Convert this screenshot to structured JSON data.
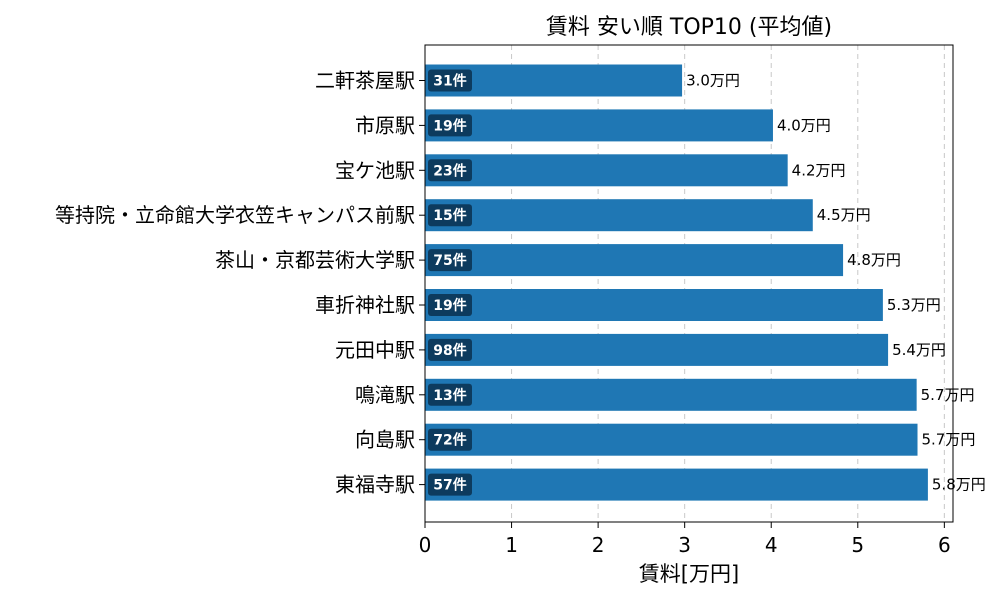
{
  "chart_data": {
    "type": "bar",
    "orientation": "horizontal",
    "title": "賃料 安い順 TOP10 (平均値)",
    "xlabel": "賃料[万円]",
    "ylabel": "",
    "xlim": [
      0,
      6.1
    ],
    "xticks": [
      "0",
      "1",
      "2",
      "3",
      "4",
      "5",
      "6"
    ],
    "grid": "x-dashed",
    "bar_color": "#1f77b4",
    "badge_color": "#0d3b5e",
    "categories": [
      "二軒茶屋駅",
      "市原駅",
      "宝ケ池駅",
      "等持院・立命館大学衣笠キャンパス前駅",
      "茶山・京都芸術大学駅",
      "車折神社駅",
      "元田中駅",
      "鳴滝駅",
      "向島駅",
      "東福寺駅"
    ],
    "values": [
      2.97,
      4.02,
      4.19,
      4.48,
      4.83,
      5.29,
      5.35,
      5.68,
      5.69,
      5.81
    ],
    "value_labels": [
      "3.0万円",
      "4.0万円",
      "4.2万円",
      "4.5万円",
      "4.8万円",
      "5.3万円",
      "5.4万円",
      "5.7万円",
      "5.7万円",
      "5.8万円"
    ],
    "counts": [
      "31件",
      "19件",
      "23件",
      "15件",
      "75件",
      "19件",
      "98件",
      "13件",
      "72件",
      "57件"
    ]
  }
}
